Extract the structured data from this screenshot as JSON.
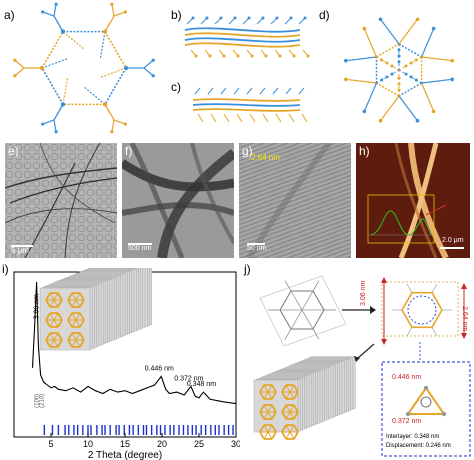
{
  "labels": {
    "a": "a)",
    "b": "b)",
    "c": "c)",
    "d": "d)",
    "e": "e)",
    "f": "f)",
    "g": "g)",
    "h": "h)",
    "i": "i)",
    "j": "j)"
  },
  "scalebars": {
    "e": "5 μm",
    "f": "500 nm",
    "g": "50 nm",
    "h": "2.0 μm"
  },
  "g_annotation": "2.64 nm",
  "colors": {
    "gold": "#e5a628",
    "blue": "#3b8fd9",
    "dashed_gold": "#d99a1e",
    "xrd_blue": "#1a2fd0",
    "afm_bg": "#5a1a0c",
    "red": "#cc2222"
  },
  "chart_data": {
    "type": "line",
    "xlabel": "2 Theta (degree)",
    "xlim": [
      0,
      30
    ],
    "xticks": [
      5,
      10,
      15,
      20,
      25,
      30
    ],
    "series": [
      {
        "name": "",
        "x": [
          2.5,
          2.8,
          3.06,
          3.3,
          3.6,
          4.0,
          4.5,
          5.0,
          5.5,
          6.0,
          7.0,
          8.0,
          9.0,
          10.0,
          11.0,
          12.0,
          13.0,
          14.0,
          15.0,
          16.0,
          17.0,
          18.0,
          19.0,
          19.9,
          20.5,
          21.0,
          22.0,
          23.0,
          23.9,
          24.5,
          25.0,
          25.6,
          26.5,
          27.5,
          28.5,
          30.0
        ],
        "y": [
          0.4,
          0.7,
          1.0,
          0.55,
          0.35,
          0.3,
          0.28,
          0.26,
          0.27,
          0.25,
          0.24,
          0.26,
          0.23,
          0.27,
          0.24,
          0.22,
          0.25,
          0.23,
          0.24,
          0.22,
          0.24,
          0.26,
          0.28,
          0.34,
          0.25,
          0.22,
          0.23,
          0.21,
          0.27,
          0.2,
          0.19,
          0.23,
          0.18,
          0.17,
          0.16,
          0.15
        ]
      }
    ],
    "annotations": [
      {
        "text": "3.06 nm",
        "x": 3.06
      },
      {
        "text": "0.446 nm",
        "x": 19.9
      },
      {
        "text": "0.372 nm",
        "x": 23.9
      },
      {
        "text": "0.348 nm",
        "x": 25.6
      }
    ],
    "miller_labels": [
      "(100)",
      "(210)"
    ],
    "reference_ticks": [
      4.1,
      5.2,
      6.0,
      6.9,
      7.4,
      8.1,
      8.6,
      9.3,
      10.0,
      10.4,
      11.2,
      11.9,
      12.3,
      13.0,
      13.8,
      14.2,
      14.9,
      15.6,
      16.1,
      16.8,
      17.5,
      17.9,
      18.6,
      19.3,
      19.8,
      20.4,
      21.1,
      21.6,
      22.3,
      22.9,
      23.5,
      24.1,
      24.6,
      25.3,
      25.9,
      26.6,
      27.2,
      27.7,
      28.4,
      29.0,
      29.6
    ]
  },
  "j": {
    "width_label": "3.06 nm",
    "height_label": "2.64 nm",
    "inset_label_top": "0.446 nm",
    "inset_label_bottom": "0.372 nm",
    "interlayer": "Interlayer: 0.348 nm",
    "displacement": "Displacement: 0.246 nm"
  }
}
